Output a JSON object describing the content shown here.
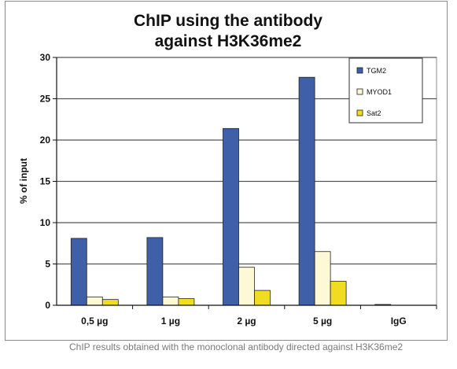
{
  "chart_data": {
    "type": "bar",
    "title_lines": [
      "ChIP using the antibody",
      "against H3K36me2"
    ],
    "xlabel": "",
    "ylabel": "% of input",
    "ylim": [
      0,
      30
    ],
    "yticks": [
      0,
      5,
      10,
      15,
      20,
      25,
      30
    ],
    "grid": true,
    "legend_position": "top-right",
    "categories": [
      "0,5 µg",
      "1 µg",
      "2 µg",
      "5 µg",
      "IgG"
    ],
    "series": [
      {
        "name": "TGM2",
        "color": "#3f5fa8",
        "values": [
          8.1,
          8.2,
          21.4,
          27.6,
          0.1
        ]
      },
      {
        "name": "MYOD1",
        "color": "#fdf8d6",
        "values": [
          1.0,
          1.0,
          4.6,
          6.5,
          0
        ]
      },
      {
        "name": "Sat2",
        "color": "#f0dd22",
        "values": [
          0.7,
          0.8,
          1.8,
          2.9,
          0
        ]
      }
    ]
  },
  "caption": "ChIP results obtained with the monoclonal antibody directed against H3K36me2"
}
